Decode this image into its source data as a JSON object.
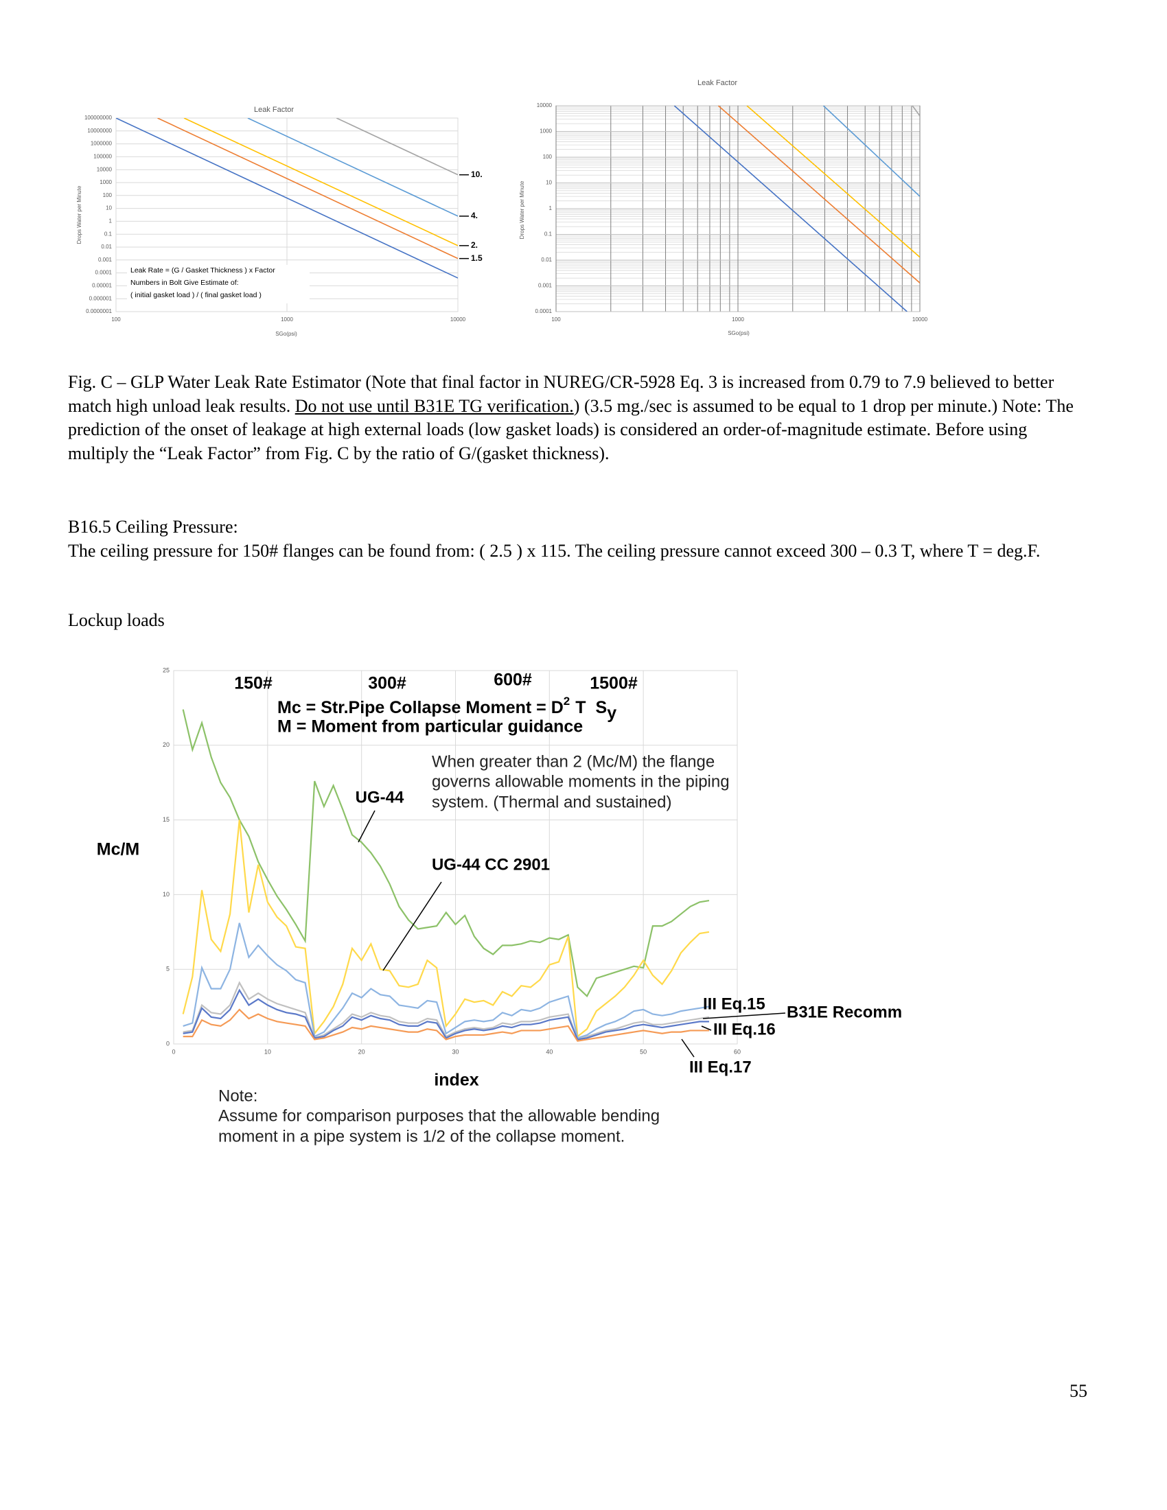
{
  "chart_data": [
    {
      "type": "line",
      "title": "Leak Factor",
      "xlabel": "SGo(psi)",
      "ylabel": "Drops Water per Minute",
      "log_x": true,
      "log_y": true,
      "grid": true,
      "minor_grid": false,
      "xlim": [
        100,
        10000
      ],
      "xticks": [
        100,
        1000,
        10000
      ],
      "ylim": [
        1e-07,
        100000000
      ],
      "yticks": [
        100000000,
        10000000,
        1000000,
        100000,
        10000,
        1000,
        100,
        10,
        1,
        0.1,
        0.01,
        0.001,
        0.0001,
        1e-05,
        1e-06,
        {
          "value": 1e-07,
          "label": "0.0000001"
        }
      ],
      "notes": [
        "Leak Rate = (G / Gasket Thickness ) x Factor",
        "Numbers in Bolt Give Estimate of:",
        "( initial gasket load ) / ( final gasket load )"
      ],
      "series": [
        {
          "color": "#4472c4",
          "x": [
            100,
            10000
          ],
          "values": [
            100000000,
            4e-05
          ]
        },
        {
          "name": "1.5",
          "color": "#ed7d31",
          "x": [
            175,
            10000
          ],
          "values": [
            100000000,
            0.0013
          ]
        },
        {
          "name": "2.",
          "color": "#ffc000",
          "x": [
            250,
            10000
          ],
          "values": [
            100000000,
            0.013
          ]
        },
        {
          "name": "4.",
          "color": "#5b9bd5",
          "x": [
            590,
            10000
          ],
          "values": [
            100000000,
            2.5
          ]
        },
        {
          "name": "10.",
          "color": "#a5a5a5",
          "x": [
            1950,
            10000
          ],
          "values": [
            100000000,
            4000
          ]
        }
      ]
    },
    {
      "type": "line",
      "title": "Leak Factor",
      "xlabel": "SGo(psi)",
      "ylabel": "Drops Water per Minute",
      "log_x": true,
      "log_y": true,
      "grid": true,
      "minor_grid": true,
      "xlim": [
        100,
        10000
      ],
      "xticks": [
        100,
        1000,
        10000
      ],
      "ylim": [
        0.0001,
        10000
      ],
      "yticks": [
        10000,
        1000,
        100,
        10,
        1,
        0.1,
        0.01,
        0.001,
        0.0001
      ],
      "series": [
        {
          "color": "#4472c4",
          "x": [
            447,
            8500
          ],
          "values": [
            10000,
            0.0001
          ]
        },
        {
          "color": "#ed7d31",
          "x": [
            780,
            10000
          ],
          "values": [
            10000,
            0.0013
          ]
        },
        {
          "color": "#ffc000",
          "x": [
            1120,
            10000
          ],
          "values": [
            10000,
            0.013
          ]
        },
        {
          "color": "#5b9bd5",
          "x": [
            2950,
            10000
          ],
          "values": [
            10000,
            3
          ]
        },
        {
          "color": "#a5a5a5",
          "x": [
            9100,
            10000
          ],
          "values": [
            10000,
            4000
          ]
        }
      ]
    },
    {
      "type": "line",
      "xlabel": "index",
      "ylabel": "Mc/M",
      "grid": true,
      "xlim": [
        0,
        60
      ],
      "xticks": [
        0,
        10,
        20,
        30,
        40,
        50,
        60
      ],
      "ylim": [
        0,
        25
      ],
      "yticks": [
        0,
        5,
        10,
        15,
        20,
        25
      ],
      "annotations": [
        "150#",
        "300#",
        "600#",
        "1500#"
      ],
      "formula": [
        "Mc = Str.Pipe Collapse Moment = D",
        "2",
        "T",
        "S",
        "y"
      ],
      "formula_line": "M = Moment from particular guidance",
      "remark": [
        "When greater than 2 (Mc/M) the flange",
        "governs allowable moments in the piping",
        "system. (Thermal and sustained)"
      ],
      "note": [
        "Note:",
        "Assume for comparison purposes that the allowable bending",
        "moment in a pipe system is 1/2 of the collapse moment."
      ],
      "x": [
        1,
        2,
        3,
        4,
        5,
        6,
        7,
        8,
        9,
        10,
        11,
        12,
        13,
        14,
        15,
        16,
        17,
        18,
        19,
        20,
        21,
        22,
        23,
        24,
        25,
        26,
        27,
        28,
        29,
        30,
        31,
        32,
        33,
        34,
        35,
        36,
        37,
        38,
        39,
        40,
        41,
        42,
        43,
        44,
        45,
        46,
        47,
        48,
        49,
        50,
        51,
        52,
        53,
        54,
        55,
        56,
        57
      ],
      "series": [
        {
          "name": "UG-44",
          "color": "#8cc168",
          "values": [
            22.4,
            19.7,
            21.5,
            19.2,
            17.5,
            16.5,
            15.0,
            13.9,
            12.2,
            11.0,
            9.9,
            9.0,
            8.0,
            6.9,
            17.6,
            15.9,
            17.3,
            15.7,
            14.0,
            13.5,
            12.8,
            11.9,
            10.7,
            9.2,
            8.3,
            7.7,
            7.8,
            7.9,
            8.8,
            8.0,
            8.6,
            7.2,
            6.4,
            6.0,
            6.6,
            6.6,
            6.7,
            6.9,
            6.8,
            7.1,
            7.0,
            7.3,
            3.8,
            3.2,
            4.4,
            4.6,
            4.8,
            5.0,
            5.2,
            5.1,
            7.9,
            7.9,
            8.2,
            8.7,
            9.2,
            9.5,
            9.6
          ]
        },
        {
          "name": "UG-44 CC 2901",
          "color": "#ffd94a",
          "values": [
            2.0,
            4.5,
            10.3,
            7.0,
            6.2,
            8.7,
            15.0,
            8.8,
            12.0,
            9.5,
            8.5,
            7.9,
            6.5,
            6.4,
            0.7,
            1.5,
            2.5,
            4.0,
            6.4,
            5.6,
            6.7,
            5.0,
            4.9,
            3.9,
            3.8,
            4.0,
            5.6,
            5.1,
            1.2,
            2.0,
            3.0,
            2.8,
            2.9,
            2.6,
            3.5,
            3.2,
            3.9,
            3.8,
            4.3,
            5.3,
            5.5,
            7.2,
            0.5,
            1.0,
            2.2,
            2.7,
            3.2,
            3.8,
            4.6,
            5.6,
            4.6,
            4.0,
            4.9,
            6.1,
            6.8,
            7.4,
            7.5
          ]
        },
        {
          "name": "III Eq.15",
          "color": "#8db4e2",
          "values": [
            1.2,
            1.4,
            5.1,
            3.7,
            3.7,
            5.0,
            8.1,
            5.8,
            6.6,
            5.9,
            5.3,
            4.9,
            4.3,
            4.1,
            0.5,
            0.8,
            1.6,
            2.4,
            3.4,
            3.1,
            3.7,
            3.3,
            3.2,
            2.6,
            2.5,
            2.4,
            2.9,
            2.8,
            0.7,
            1.1,
            1.5,
            1.6,
            1.5,
            1.6,
            2.1,
            1.9,
            2.3,
            2.2,
            2.4,
            2.8,
            3.0,
            3.2,
            0.4,
            0.6,
            1.0,
            1.3,
            1.5,
            1.8,
            2.2,
            2.3,
            2.0,
            1.9,
            2.0,
            2.2,
            2.3,
            2.4,
            2.5
          ]
        },
        {
          "name": "B31E Recomm",
          "color": "#c0c0c0",
          "values": [
            0.8,
            0.9,
            2.6,
            2.1,
            2.0,
            2.6,
            4.1,
            3.0,
            3.4,
            3.0,
            2.7,
            2.5,
            2.3,
            2.1,
            0.4,
            0.6,
            1.0,
            1.4,
            2.0,
            1.8,
            2.1,
            1.9,
            1.8,
            1.5,
            1.4,
            1.4,
            1.7,
            1.6,
            0.5,
            0.8,
            1.0,
            1.1,
            1.0,
            1.1,
            1.4,
            1.3,
            1.5,
            1.5,
            1.6,
            1.8,
            1.9,
            2.0,
            0.3,
            0.5,
            0.7,
            0.9,
            1.0,
            1.2,
            1.4,
            1.5,
            1.3,
            1.3,
            1.4,
            1.5,
            1.6,
            1.7,
            1.8
          ]
        },
        {
          "name": "III Eq.16",
          "color": "#5a78c8",
          "values": [
            0.7,
            0.8,
            2.4,
            1.8,
            1.7,
            2.3,
            3.6,
            2.6,
            3.0,
            2.6,
            2.3,
            2.1,
            2.0,
            1.8,
            0.4,
            0.5,
            0.9,
            1.2,
            1.8,
            1.6,
            1.9,
            1.7,
            1.6,
            1.3,
            1.2,
            1.2,
            1.5,
            1.4,
            0.4,
            0.7,
            0.9,
            1.0,
            0.9,
            1.0,
            1.2,
            1.1,
            1.3,
            1.3,
            1.4,
            1.6,
            1.7,
            1.8,
            0.3,
            0.4,
            0.6,
            0.8,
            0.9,
            1.0,
            1.2,
            1.3,
            1.2,
            1.1,
            1.2,
            1.3,
            1.4,
            1.5,
            1.5
          ]
        },
        {
          "name": "III Eq.17",
          "color": "#f59a55",
          "values": [
            0.5,
            0.5,
            1.6,
            1.3,
            1.2,
            1.6,
            2.3,
            1.7,
            2.0,
            1.7,
            1.5,
            1.4,
            1.3,
            1.2,
            0.3,
            0.4,
            0.6,
            0.8,
            1.1,
            1.0,
            1.2,
            1.1,
            1.0,
            0.9,
            0.8,
            0.8,
            1.0,
            0.9,
            0.3,
            0.5,
            0.6,
            0.6,
            0.6,
            0.7,
            0.8,
            0.7,
            0.9,
            0.9,
            0.9,
            1.0,
            1.1,
            1.2,
            0.2,
            0.3,
            0.4,
            0.5,
            0.6,
            0.7,
            0.8,
            0.9,
            0.8,
            0.7,
            0.8,
            0.8,
            0.9,
            0.9,
            0.9
          ]
        }
      ]
    }
  ],
  "caption": {
    "before": "Fig. C – GLP Water Leak Rate Estimator (Note that final factor in NUREG/CR-5928 Eq. 3 is increased from 0.79 to 7.9 believed to better match high unload leak results. ",
    "underlined": "Do not use until B31E TG verification.",
    "after": ") (3.5 mg./sec is assumed to be equal to 1 drop per minute.) Note: The prediction of the onset of leakage at high external loads (low gasket loads) is considered an order-of-magnitude estimate.  Before using multiply the “Leak Factor” from Fig. C by the ratio of G/(gasket thickness)."
  },
  "ceiling": {
    "heading": "B16.5 Ceiling Pressure:",
    "text": "The ceiling pressure for 150# flanges can be found from: ( 2.5 ) x 115. The ceiling pressure cannot exceed 300 – 0.3 T, where T = deg.F."
  },
  "lockup_heading": "Lockup loads",
  "page_number": "55"
}
